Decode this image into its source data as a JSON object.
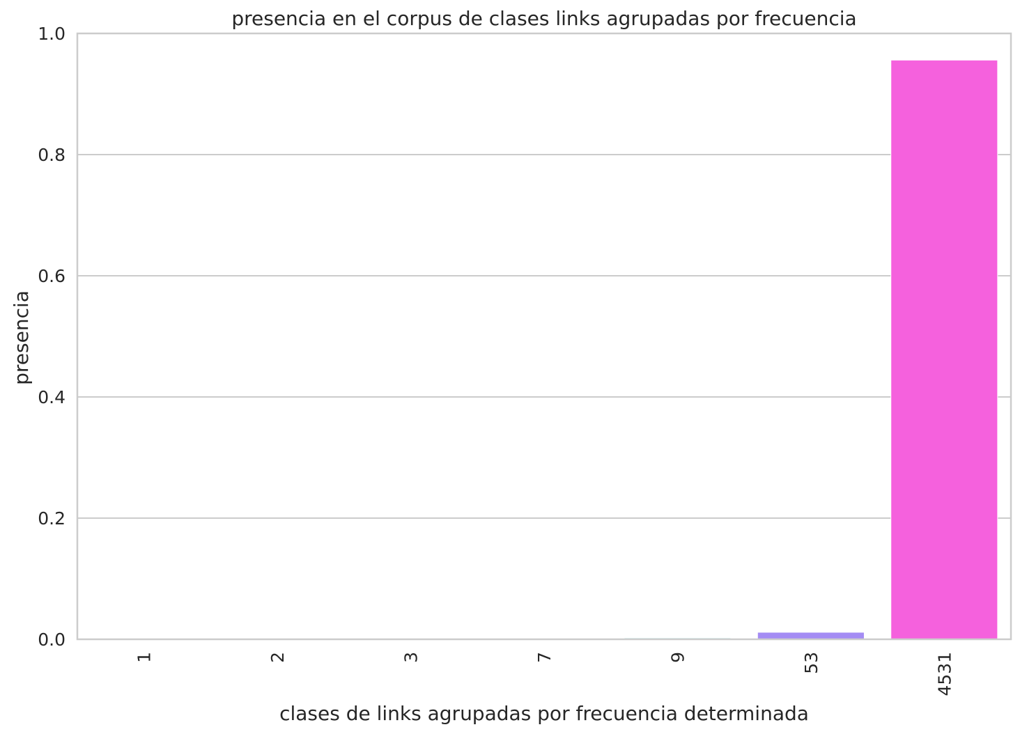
{
  "chart_data": {
    "type": "bar",
    "title": "presencia en el corpus de clases links agrupadas por frecuencia",
    "xlabel": "clases de links agrupadas por frecuencia determinada",
    "ylabel": "presencia",
    "categories": [
      "1",
      "2",
      "3",
      "7",
      "9",
      "53",
      "4531"
    ],
    "values": [
      0.0002,
      0.0004,
      0.0006,
      0.0015,
      0.002,
      0.0116,
      0.956
    ],
    "colors": [
      "#f77189",
      "#bb9832",
      "#97a431",
      "#32b166",
      "#36ada4",
      "#a48cf4",
      "#f561dd"
    ],
    "ylim": [
      0,
      1.0
    ],
    "yticks": [
      "0.0",
      "0.2",
      "0.4",
      "0.6",
      "0.8",
      "1.0"
    ],
    "ytick_values": [
      0,
      0.2,
      0.4,
      0.6,
      0.8,
      1.0
    ],
    "grid": "horizontal",
    "style": {
      "grid_color": "#cccccc",
      "spine_color": "#cccccc",
      "text_color": "#262626"
    }
  }
}
